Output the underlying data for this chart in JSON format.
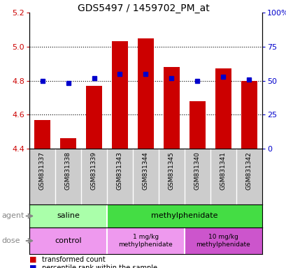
{
  "title": "GDS5497 / 1459702_PM_at",
  "samples": [
    "GSM831337",
    "GSM831338",
    "GSM831339",
    "GSM831343",
    "GSM831344",
    "GSM831345",
    "GSM831340",
    "GSM831341",
    "GSM831342"
  ],
  "red_values": [
    4.57,
    4.46,
    4.77,
    5.03,
    5.05,
    4.88,
    4.68,
    4.87,
    4.8
  ],
  "blue_values": [
    50,
    48,
    52,
    55,
    55,
    52,
    50,
    53,
    51
  ],
  "ylim_left": [
    4.4,
    5.2
  ],
  "ylim_right": [
    0,
    100
  ],
  "yticks_left": [
    4.4,
    4.6,
    4.8,
    5.0,
    5.2
  ],
  "yticks_right": [
    0,
    25,
    50,
    75,
    100
  ],
  "ytick_labels_right": [
    "0",
    "25",
    "50",
    "75",
    "100%"
  ],
  "bar_color": "#cc0000",
  "dot_color": "#0000cc",
  "saline_color": "#aaffaa",
  "methyl_color": "#44dd44",
  "control_color": "#ee99ee",
  "dose1_color": "#ee99ee",
  "dose10_color": "#cc55cc",
  "tick_bg_color": "#cccccc",
  "title_fontsize": 10,
  "tick_fontsize": 8,
  "label_fontsize": 8,
  "sample_fontsize": 6.5
}
